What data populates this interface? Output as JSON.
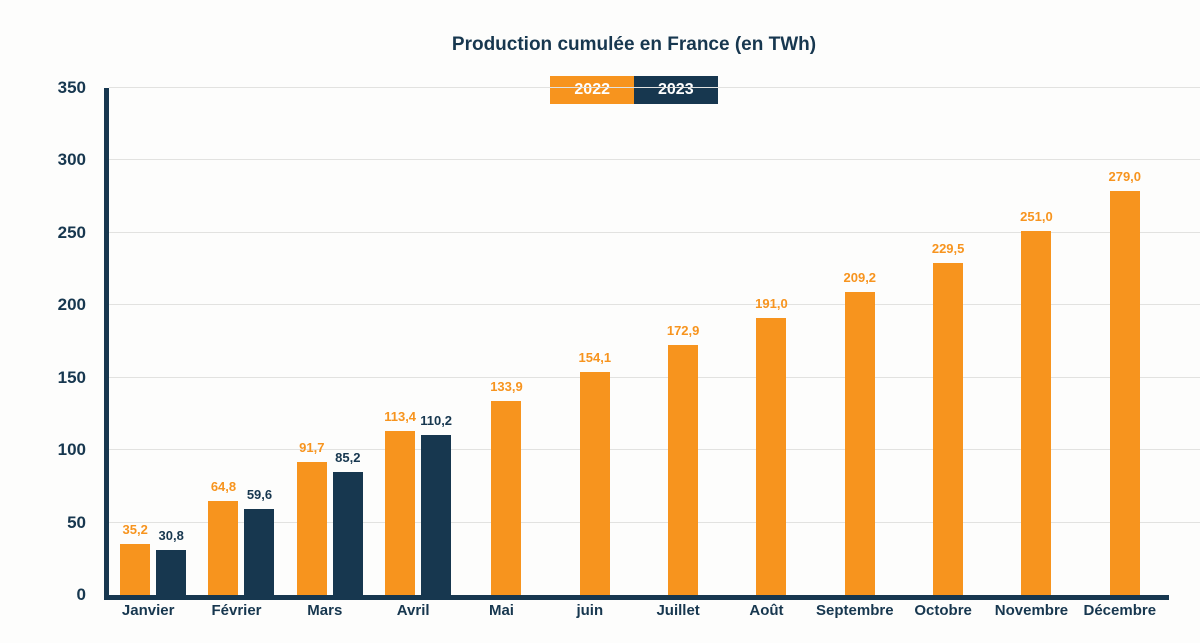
{
  "title": "Production cumulée en France (en TWh)",
  "chart_data": {
    "type": "bar",
    "title": "Production cumulée en France (en TWh)",
    "categories": [
      "Janvier",
      "Février",
      "Mars",
      "Avril",
      "Mai",
      "juin",
      "Juillet",
      "Août",
      "Septembre",
      "Octobre",
      "Novembre",
      "Décembre"
    ],
    "series": [
      {
        "name": "2022",
        "color": "#f7941e",
        "values": [
          35.2,
          64.8,
          91.7,
          113.4,
          133.9,
          154.1,
          172.9,
          191.0,
          209.2,
          229.5,
          251.0,
          279.0
        ],
        "labels": [
          "35,2",
          "64,8",
          "91,7",
          "113,4",
          "133,9",
          "154,1",
          "172,9",
          "191,0",
          "209,2",
          "229,5",
          "251,0",
          "279,0"
        ]
      },
      {
        "name": "2023",
        "color": "#17374f",
        "values": [
          30.8,
          59.6,
          85.2,
          110.2,
          null,
          null,
          null,
          null,
          null,
          null,
          null,
          null
        ],
        "labels": [
          "30,8",
          "59,6",
          "85,2",
          "110,2",
          "",
          "",
          "",
          "",
          "",
          "",
          "",
          ""
        ]
      }
    ],
    "xlabel": "",
    "ylabel": "",
    "ylim": [
      0,
      350
    ],
    "yticks": [
      0,
      50,
      100,
      150,
      200,
      250,
      300,
      350
    ],
    "grid": true,
    "legend_position": "top",
    "colors": {
      "text": "#17374f",
      "gridline": "#e2e2e0",
      "background": "#fdfdfc"
    }
  }
}
